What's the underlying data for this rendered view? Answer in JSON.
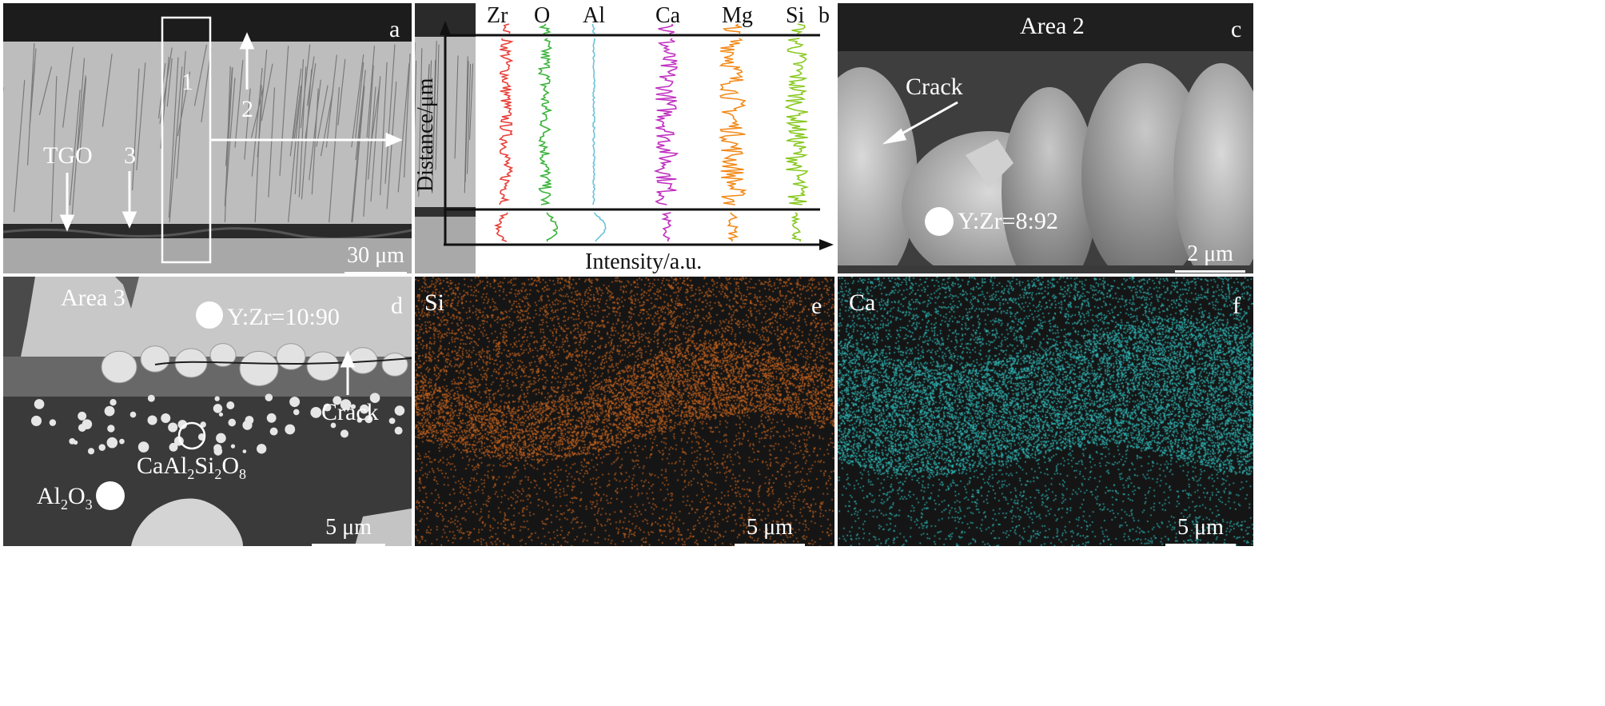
{
  "panels": {
    "a": {
      "letter": "a",
      "labels": {
        "box": "1",
        "arrow2": "2",
        "arrow3": "3",
        "tgo": "TGO"
      },
      "scale_bar": "30 μm"
    },
    "b": {
      "letter": "b",
      "elements": [
        "Zr",
        "O",
        "Al",
        "Ca",
        "Mg",
        "Si"
      ],
      "element_colors": [
        "#e8403a",
        "#3ab33a",
        "#6cc3d8",
        "#c030c0",
        "#f28a1a",
        "#88c820"
      ],
      "y_axis_label": "Distance/μm",
      "x_axis_label": "Intensity/a.u."
    },
    "c": {
      "letter": "c",
      "area": "Area 2",
      "crack": "Crack",
      "point": "Y:Zr=8:92",
      "scale_bar": "2 μm"
    },
    "d": {
      "letter": "d",
      "area": "Area 3",
      "point": "Y:Zr=10:90",
      "crack": "Crack",
      "phase1": {
        "p1": "CaAl",
        "s1": "2",
        "p2": "Si",
        "s2": "2",
        "p3": "O",
        "s3": "8"
      },
      "phase2": {
        "p1": "Al",
        "s1": "2",
        "p2": "O",
        "s2": "3"
      },
      "scale_bar": "5 μm"
    },
    "e": {
      "letter": "e",
      "element": "Si",
      "color": "#c8641e",
      "scale_bar": "5 μm"
    },
    "f": {
      "letter": "f",
      "element": "Ca",
      "color": "#2fb8b8",
      "scale_bar": "5 μm"
    }
  }
}
